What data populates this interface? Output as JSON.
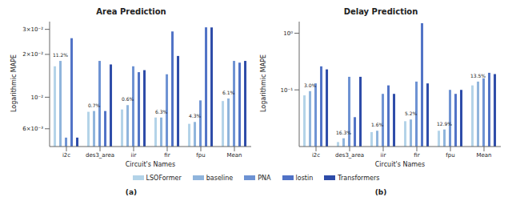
{
  "chart_data": [
    {
      "type": "bar",
      "title": "Area Prediction",
      "subtitle": "(a)",
      "x_label": "Circuit's Names",
      "y_label": "Logarithmic MAPE",
      "categories": [
        "i2c",
        "des3_area",
        "iir",
        "fir",
        "fpu",
        "Mean"
      ],
      "series": [
        {
          "name": "LSOFormer",
          "color": "#b3d3e8",
          "values": [
            0.0165,
            0.0079,
            0.0082,
            0.0072,
            0.0065,
            0.0094
          ]
        },
        {
          "name": "baseline",
          "color": "#8fb4dc",
          "values": [
            0.018,
            0.008,
            0.0088,
            0.0072,
            0.0067,
            0.0098
          ]
        },
        {
          "name": "PNA",
          "color": "#6d92d3",
          "values": [
            0.0052,
            0.018,
            0.0165,
            0.0145,
            0.0095,
            0.018
          ]
        },
        {
          "name": "lostin",
          "color": "#5072c6",
          "values": [
            0.026,
            0.008,
            0.015,
            0.029,
            0.031,
            0.0175
          ]
        },
        {
          "name": "Transformers",
          "color": "#2d4ba8",
          "values": [
            0.0052,
            0.017,
            0.0155,
            0.0195,
            0.031,
            0.018
          ]
        }
      ],
      "annotations": [
        "11.2%",
        "0.7%",
        "0.6%",
        "6.3%",
        "4.3%",
        "6.1%"
      ],
      "log": "y",
      "grid": false,
      "ylim": [
        0.0045,
        0.034
      ],
      "yticks": [
        {
          "value": 0.006,
          "label": "6×10⁻³"
        },
        {
          "value": 0.01,
          "label": "10⁻²"
        },
        {
          "value": 0.02,
          "label": "2×10⁻²"
        },
        {
          "value": 0.03,
          "label": "3×10⁻²"
        }
      ]
    },
    {
      "type": "bar",
      "title": "Delay Prediction",
      "subtitle": "(b)",
      "x_label": "Circuit's Names",
      "y_label": "Logarithmic MAPE",
      "categories": [
        "i2c",
        "des3_area",
        "iir",
        "fir",
        "fpu",
        "Mean"
      ],
      "series": [
        {
          "name": "LSOFormer",
          "color": "#b3d3e8",
          "values": [
            0.08,
            0.012,
            0.018,
            0.028,
            0.019,
            0.12
          ]
        },
        {
          "name": "baseline",
          "color": "#8fb4dc",
          "values": [
            0.095,
            0.014,
            0.019,
            0.03,
            0.02,
            0.14
          ]
        },
        {
          "name": "PNA",
          "color": "#6d92d3",
          "values": [
            0.13,
            0.17,
            0.085,
            0.14,
            0.1,
            0.16
          ]
        },
        {
          "name": "lostin",
          "color": "#5072c6",
          "values": [
            0.26,
            0.033,
            0.12,
            1.5,
            0.085,
            0.2
          ]
        },
        {
          "name": "Transformers",
          "color": "#2d4ba8",
          "values": [
            0.23,
            0.17,
            0.085,
            0.13,
            0.1,
            0.19
          ]
        }
      ],
      "annotations": [
        "3.0%",
        "16.3%",
        "1.6%",
        "5.2%",
        "12.9%",
        "13.5%"
      ],
      "log": "y",
      "grid": false,
      "ylim": [
        0.01,
        1.6
      ],
      "yticks": [
        {
          "value": 0.1,
          "label": "10⁻¹"
        },
        {
          "value": 1,
          "label": "10⁰"
        }
      ]
    }
  ]
}
